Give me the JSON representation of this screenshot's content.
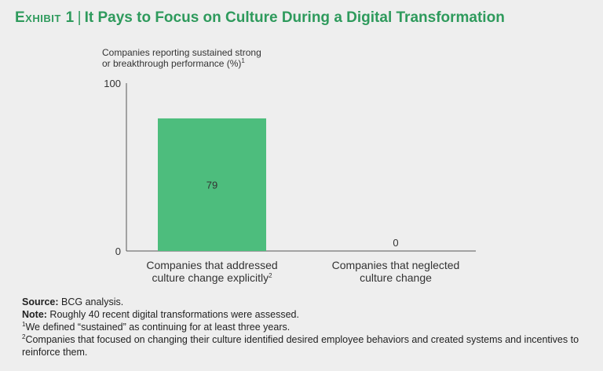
{
  "title": {
    "exhibit": "Exhibit 1",
    "separator": "|",
    "text": "It Pays to Focus on Culture During a Digital Transformation"
  },
  "colors": {
    "accent": "#2e9a5c",
    "bar": "#4dbd7d",
    "axis": "#555555"
  },
  "chart_data": {
    "type": "bar",
    "ylabel_lines": [
      "Companies reporting sustained strong",
      "or breakthrough performance (%)"
    ],
    "ylabel_footnote": "1",
    "ylim": [
      0,
      100
    ],
    "yticks": [
      0,
      100
    ],
    "categories": [
      {
        "lines": [
          "Companies that addressed",
          "culture change explicitly"
        ],
        "footnote": "2"
      },
      {
        "lines": [
          "Companies that neglected",
          "culture change"
        ],
        "footnote": ""
      }
    ],
    "values": [
      79,
      0
    ],
    "data_labels": [
      "79",
      "0"
    ]
  },
  "notes": {
    "source_label": "Source:",
    "source_text": " BCG analysis.",
    "note_label": "Note:",
    "note_text": " Roughly 40 recent digital transformations were assessed.",
    "footnote1_marker": "1",
    "footnote1_text": "We defined “sustained” as continuing for at least three years.",
    "footnote2_marker": "2",
    "footnote2_text": "Companies that focused on changing their culture identified desired employee behaviors and created systems and incentives to reinforce them."
  }
}
